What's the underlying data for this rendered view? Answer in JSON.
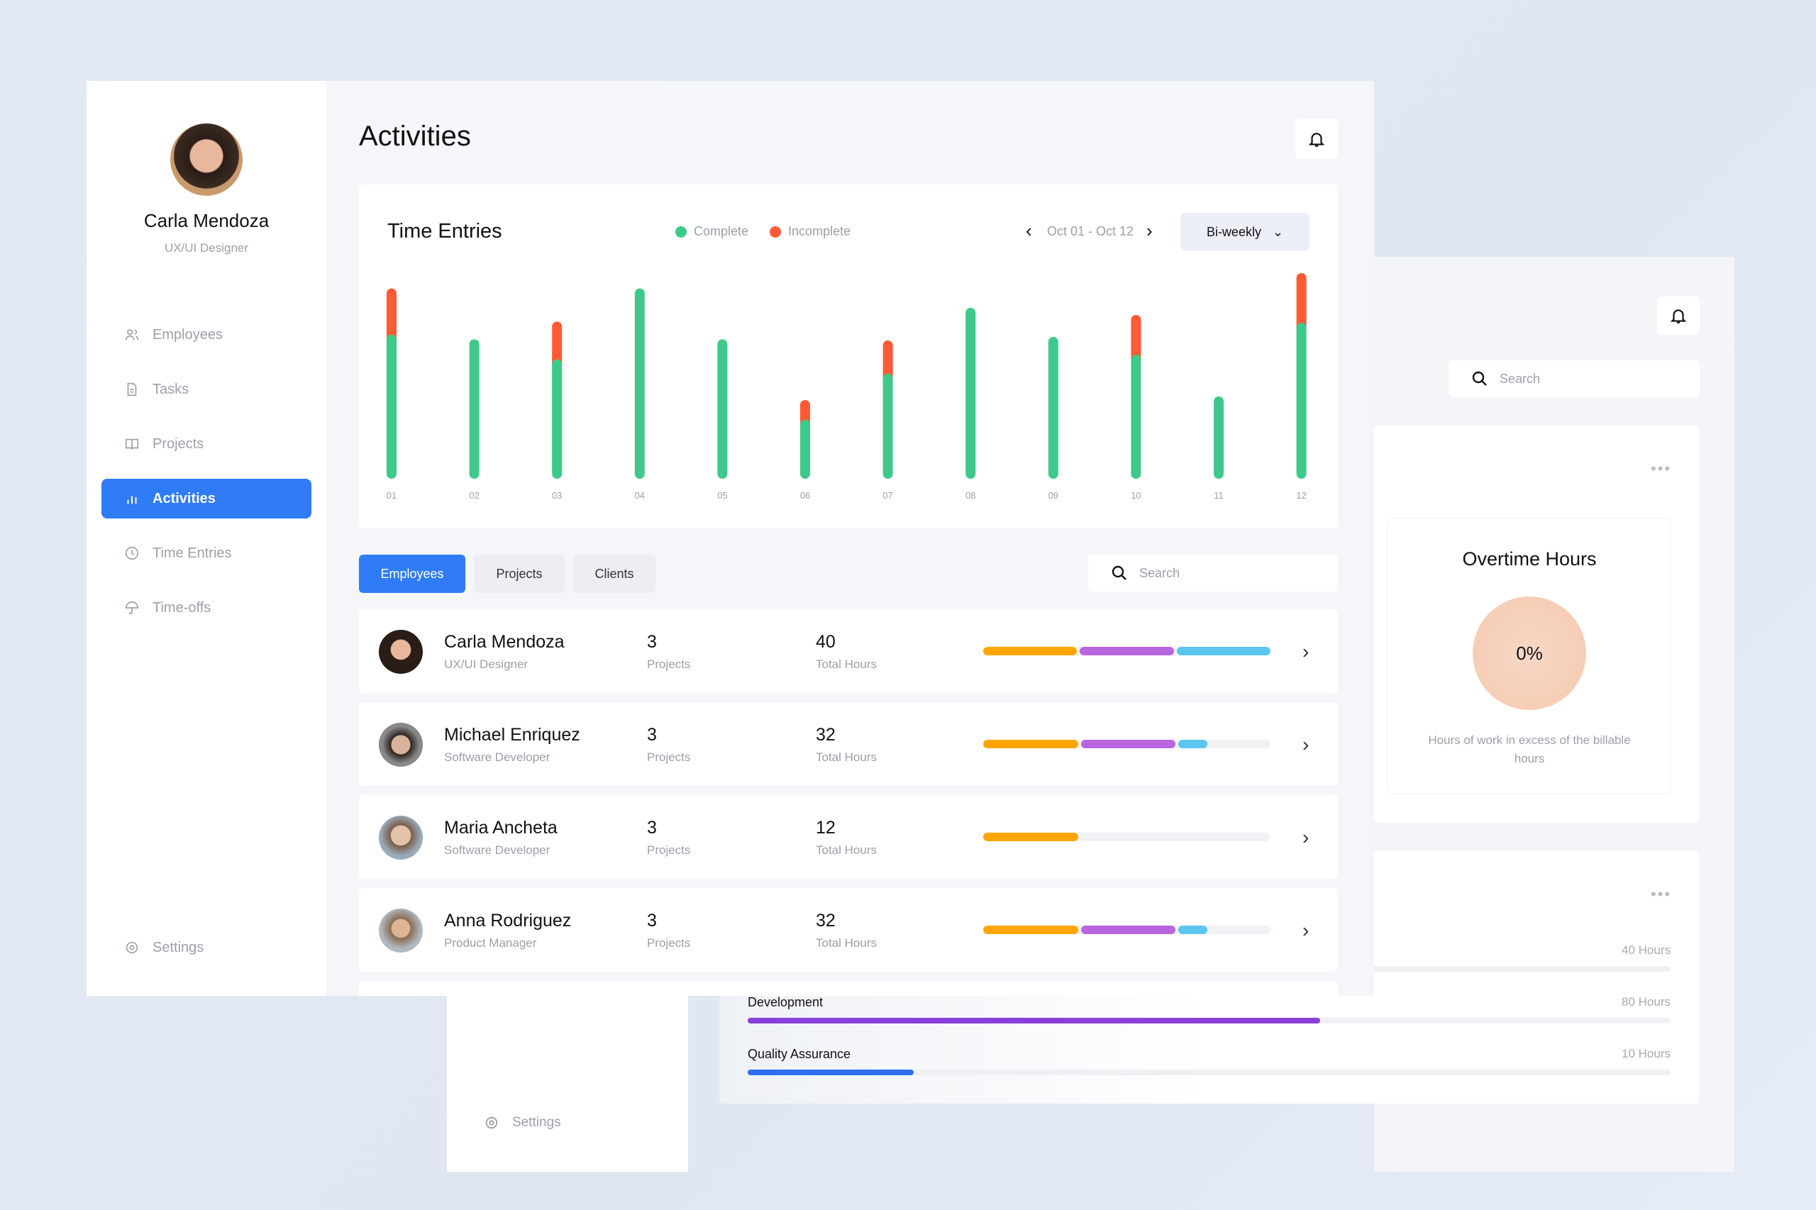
{
  "profile": {
    "name": "Carla Mendoza",
    "role": "UX/UI Designer"
  },
  "sidebar": {
    "items": [
      {
        "label": "Employees",
        "icon": "users-icon"
      },
      {
        "label": "Tasks",
        "icon": "document-icon"
      },
      {
        "label": "Projects",
        "icon": "book-icon"
      },
      {
        "label": "Activities",
        "icon": "bar-chart-icon",
        "active": true
      },
      {
        "label": "Time Entries",
        "icon": "clock-icon"
      },
      {
        "label": "Time-offs",
        "icon": "umbrella-icon"
      }
    ],
    "settings": "Settings"
  },
  "header": {
    "title": "Activities"
  },
  "time_entries": {
    "title": "Time Entries",
    "legend": [
      "Complete",
      "Incomplete"
    ],
    "range": "Oct 01 - Oct 12",
    "period": "Bi-weekly"
  },
  "colors": {
    "accent": "#2f7cf6",
    "complete": "#3ec98a",
    "incomplete": "#ff5a36",
    "orange": "#ffa500",
    "purple": "#b865e0",
    "blue": "#5bc6ee"
  },
  "chart_data": {
    "type": "bar",
    "stacked": true,
    "categories": [
      "01",
      "02",
      "03",
      "04",
      "05",
      "06",
      "07",
      "08",
      "09",
      "10",
      "11",
      "12"
    ],
    "series": [
      {
        "name": "Complete",
        "values": [
          6.1,
          5.9,
          5.05,
          8.05,
          5.9,
          2.5,
          4.45,
          7.23,
          6.0,
          5.25,
          3.48,
          6.6
        ]
      },
      {
        "name": "Incomplete",
        "values": [
          1.95,
          0,
          1.6,
          0,
          0,
          0.83,
          1.4,
          0,
          0,
          1.68,
          0,
          2.1
        ]
      }
    ],
    "ylim": [
      0,
      8.7
    ],
    "grid": false,
    "legend": "top"
  },
  "tabs": [
    "Employees",
    "Projects",
    "Clients"
  ],
  "search": {
    "placeholder": "Search"
  },
  "employees": [
    {
      "name": "Carla Mendoza",
      "role": "UX/UI Designer",
      "projects": "3",
      "projects_label": "Projects",
      "hours": "40",
      "hours_label": "Total Hours",
      "segments": [
        0.33,
        0.33,
        0.33
      ]
    },
    {
      "name": "Michael Enriquez",
      "role": "Software Developer",
      "projects": "3",
      "projects_label": "Projects",
      "hours": "32",
      "hours_label": "Total Hours",
      "segments": [
        0.33,
        0.33,
        0.1
      ]
    },
    {
      "name": "Maria Ancheta",
      "role": "Software Developer",
      "projects": "3",
      "projects_label": "Projects",
      "hours": "12",
      "hours_label": "Total Hours",
      "segments": [
        0.33
      ]
    },
    {
      "name": "Anna Rodriguez",
      "role": "Product Manager",
      "projects": "3",
      "projects_label": "Projects",
      "hours": "32",
      "hours_label": "Total Hours",
      "segments": [
        0.33,
        0.33,
        0.1
      ]
    }
  ],
  "overtime": {
    "title": "Overtime Hours",
    "value": "0%",
    "desc": "Hours of work in excess of the billable hours"
  },
  "categories": [
    {
      "label": "",
      "hours": "40 Hours",
      "fraction": 0
    },
    {
      "label": "Development",
      "hours": "80 Hours",
      "fraction": 0.62
    },
    {
      "label": "Quality Assurance",
      "hours": "10 Hours",
      "fraction": 0.18
    }
  ]
}
